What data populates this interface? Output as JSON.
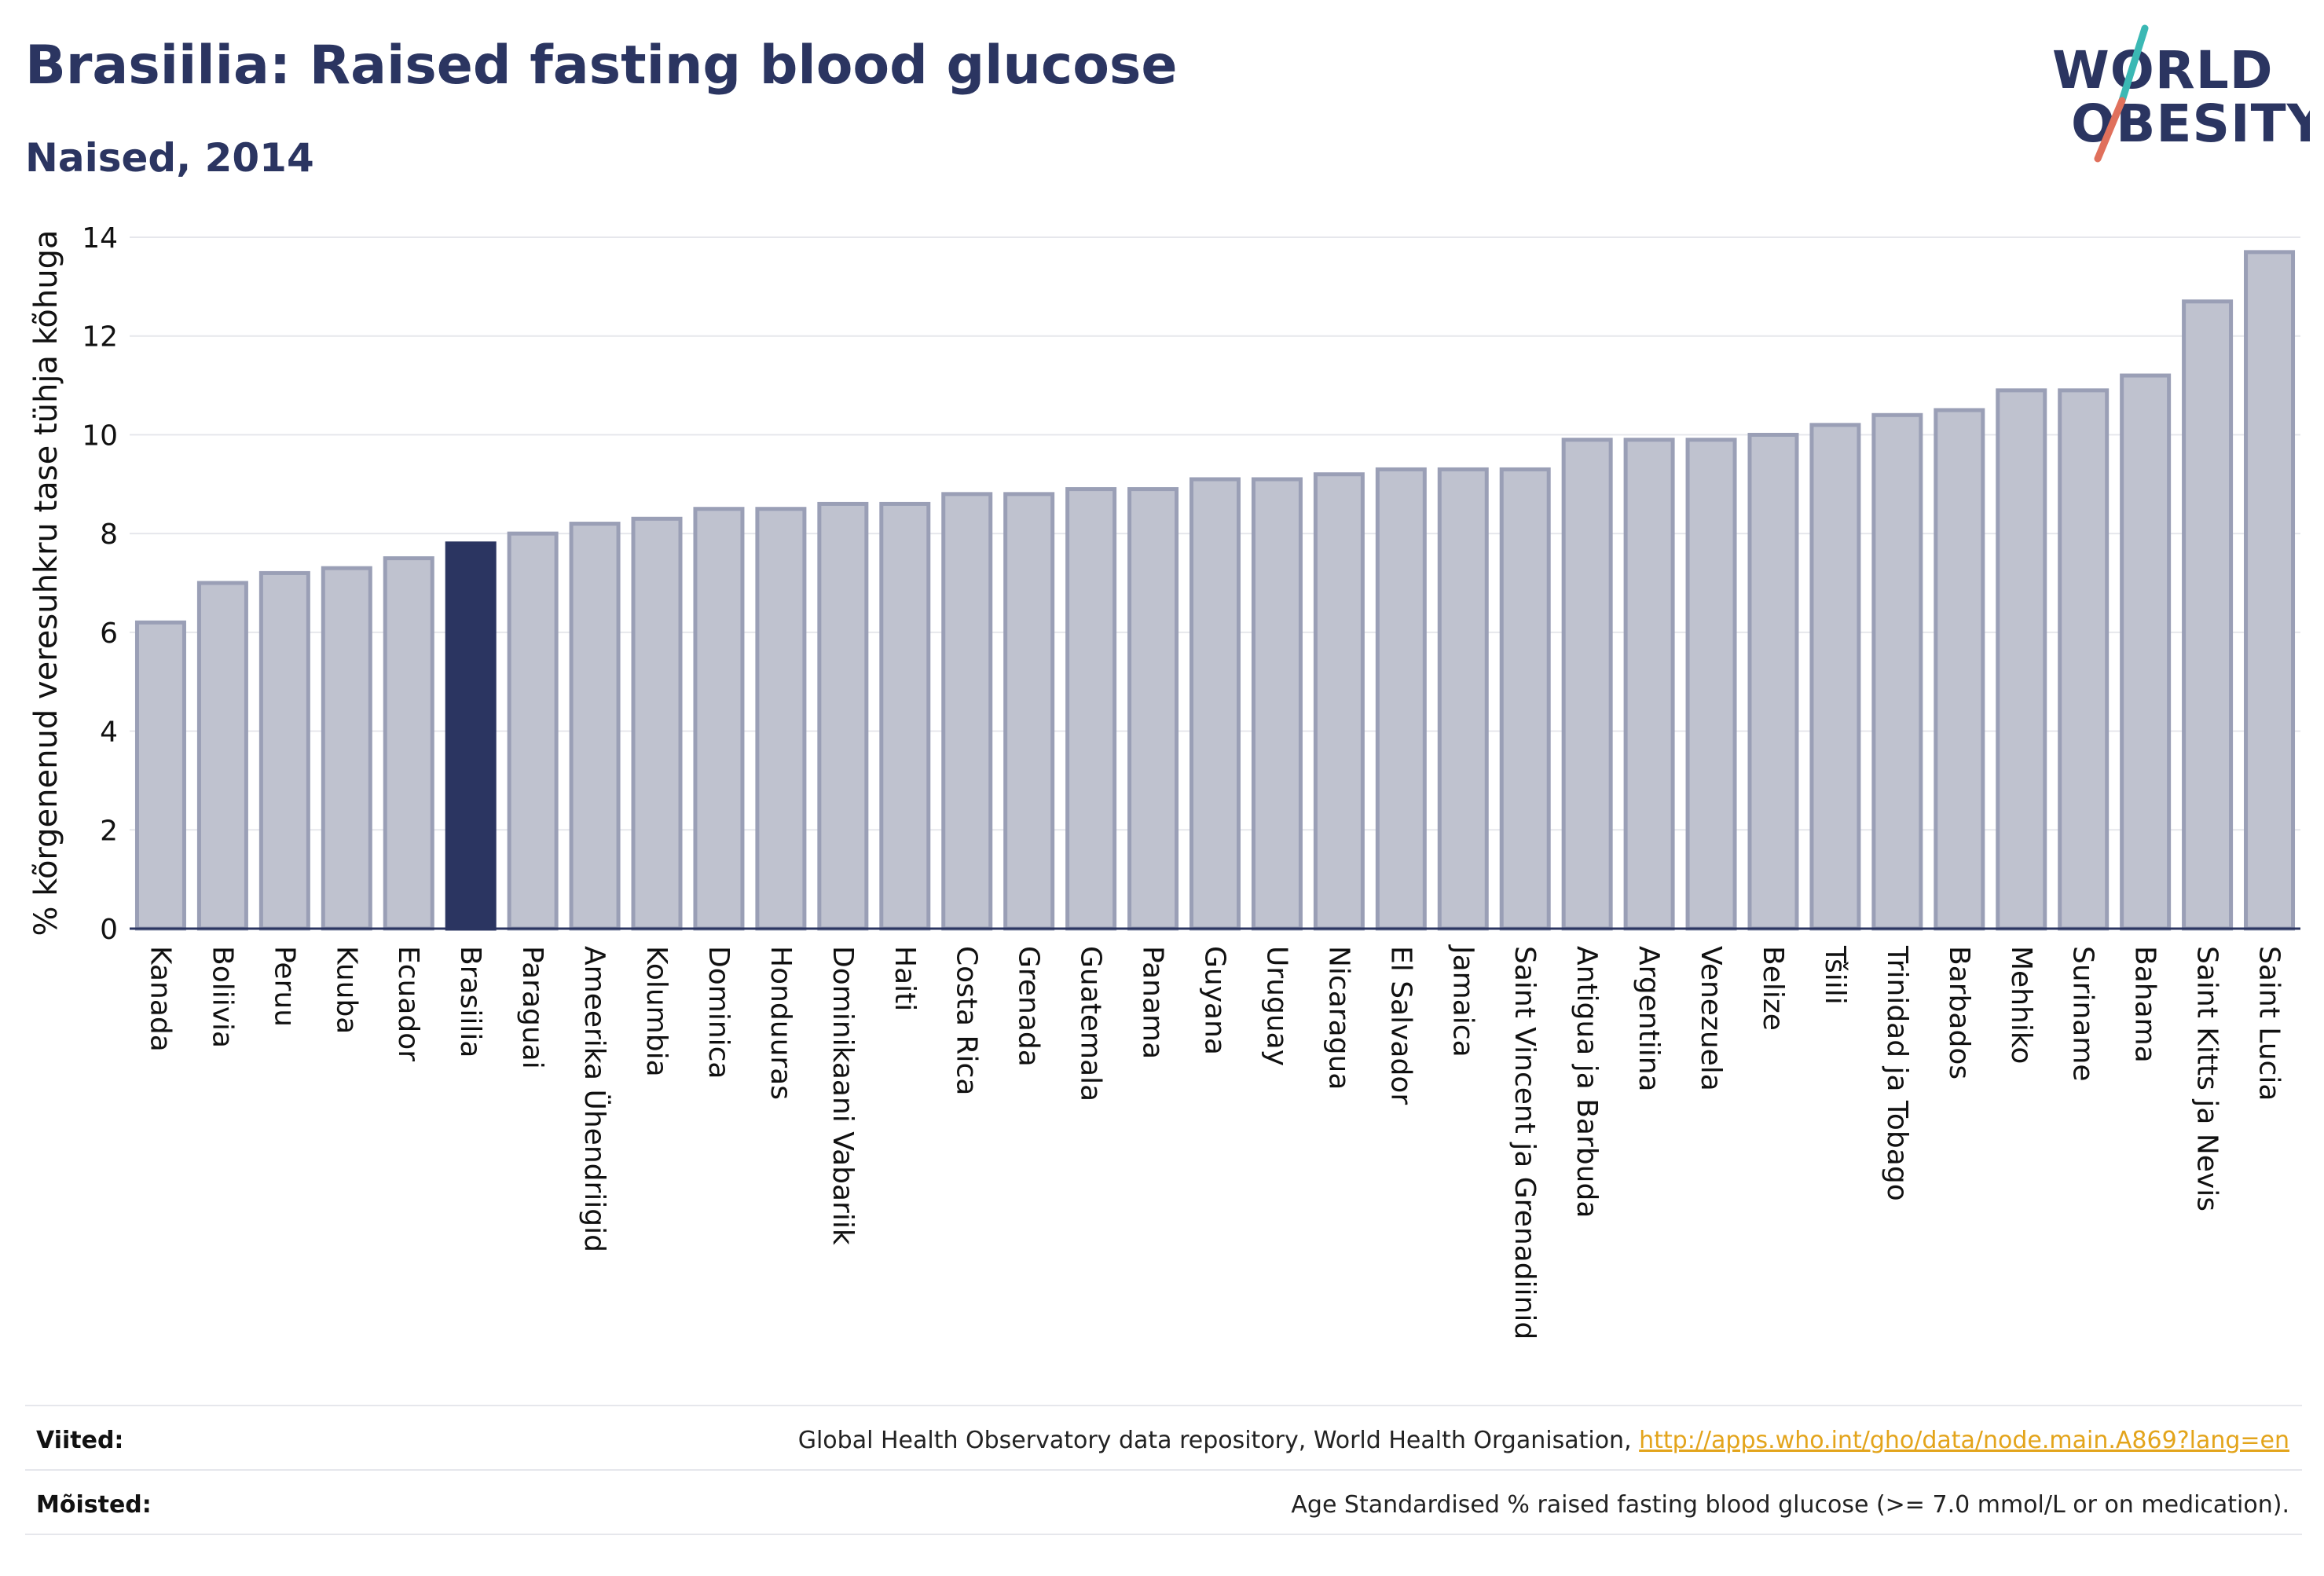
{
  "header": {
    "title": "Brasiilia: Raised fasting blood glucose",
    "subtitle": "Naised, 2014"
  },
  "logo": {
    "line1": "WORLD",
    "line2": "OBESITY"
  },
  "colors": {
    "bar": "#bfc2cf",
    "bar_stroke": "#9a9fb6",
    "highlight": "#2b3561",
    "grid": "#e6e7ec",
    "text": "#2b3561",
    "link": "#e3a41b",
    "logo_slash_red": "#e0705c",
    "logo_slash_teal": "#3bb8b4"
  },
  "chart_data": {
    "type": "bar",
    "title": "Brasiilia: Raised fasting blood glucose",
    "subtitle": "Naised, 2014",
    "ylabel": "% kõrgenenud veresuhkru tase tühja kõhuga",
    "xlabel": "",
    "ylim": [
      0,
      14
    ],
    "yticks": [
      0,
      2,
      4,
      6,
      8,
      10,
      12,
      14
    ],
    "grid": true,
    "highlight": "Brasiilia",
    "categories": [
      "Kanada",
      "Boliivia",
      "Peruu",
      "Kuuba",
      "Ecuador",
      "Brasiilia",
      "Paraguai",
      "Ameerika Ühendriigid",
      "Kolumbia",
      "Dominica",
      "Honduuras",
      "Dominikaani Vabariik",
      "Haiti",
      "Costa Rica",
      "Grenada",
      "Guatemala",
      "Panama",
      "Guyana",
      "Uruguay",
      "Nicaragua",
      "El Salvador",
      "Jamaica",
      "Saint Vincent ja Grenadiinid",
      "Antigua ja Barbuda",
      "Argentiina",
      "Venezuela",
      "Belize",
      "Tšiili",
      "Trinidad ja Tobago",
      "Barbados",
      "Mehhiko",
      "Suriname",
      "Bahama",
      "Saint Kitts ja Nevis",
      "Saint Lucia"
    ],
    "values": [
      6.2,
      7.0,
      7.2,
      7.3,
      7.5,
      7.8,
      8.0,
      8.2,
      8.3,
      8.5,
      8.5,
      8.6,
      8.6,
      8.8,
      8.8,
      8.9,
      8.9,
      9.1,
      9.1,
      9.2,
      9.3,
      9.3,
      9.3,
      9.9,
      9.9,
      9.9,
      10.0,
      10.2,
      10.4,
      10.5,
      10.9,
      10.9,
      11.2,
      12.7,
      13.7
    ]
  },
  "footer": {
    "references_label": "Viited:",
    "references_text": "Global Health Observatory data repository, World Health Organisation, ",
    "references_link": "http://apps.who.int/gho/data/node.main.A869?lang=en",
    "definitions_label": "Mõisted:",
    "definitions_text": "Age Standardised % raised fasting blood glucose (>= 7.0 mmol/L or on medication)."
  }
}
